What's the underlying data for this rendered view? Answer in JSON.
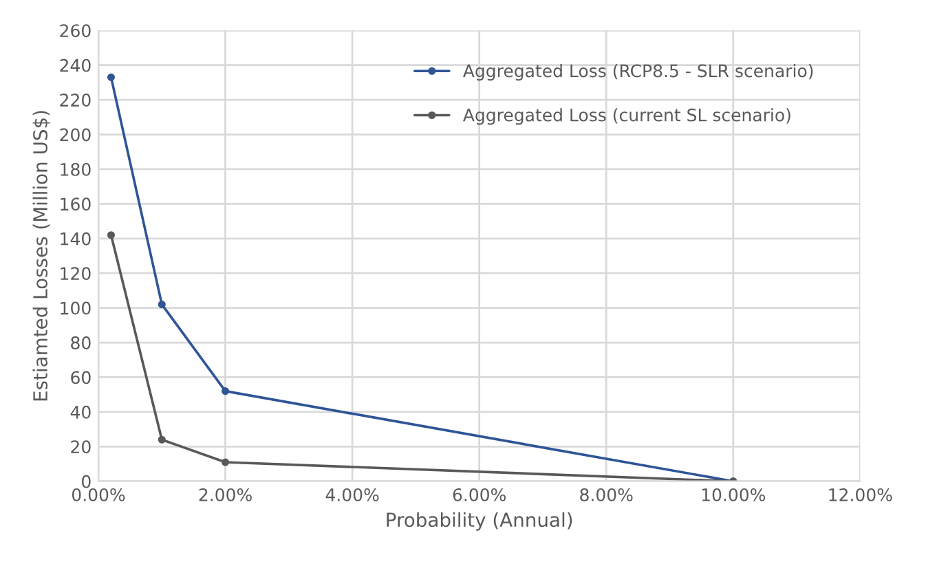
{
  "chart_data": {
    "type": "line",
    "xlabel": "Probability (Annual)",
    "ylabel": "Estiamted Losses (Million US$)",
    "series": [
      {
        "name": "Aggregated Loss (RCP8.5 - SLR scenario)",
        "color": "#2f5597",
        "x": [
          0.2,
          1,
          2,
          10
        ],
        "values": [
          233,
          102,
          52,
          0
        ]
      },
      {
        "name": "Aggregated Loss (current SL scenario)",
        "color": "#595959",
        "x": [
          0.2,
          1,
          2,
          10
        ],
        "values": [
          142,
          24,
          11,
          0
        ]
      }
    ],
    "xlim": [
      0,
      12
    ],
    "xticks": [
      {
        "value": 0,
        "label": "0.00%"
      },
      {
        "value": 2,
        "label": "2.00%"
      },
      {
        "value": 4,
        "label": "4.00%"
      },
      {
        "value": 6,
        "label": "6.00%"
      },
      {
        "value": 8,
        "label": "8.00%"
      },
      {
        "value": 10,
        "label": "10.00%"
      },
      {
        "value": 12,
        "label": "12.00%"
      }
    ],
    "ylim": [
      0,
      260
    ],
    "yticks": [
      0,
      20,
      40,
      60,
      80,
      100,
      120,
      140,
      160,
      180,
      200,
      220,
      240,
      260
    ],
    "grid": true,
    "legend": "top right",
    "marker": "circle",
    "line_style": "solid"
  }
}
